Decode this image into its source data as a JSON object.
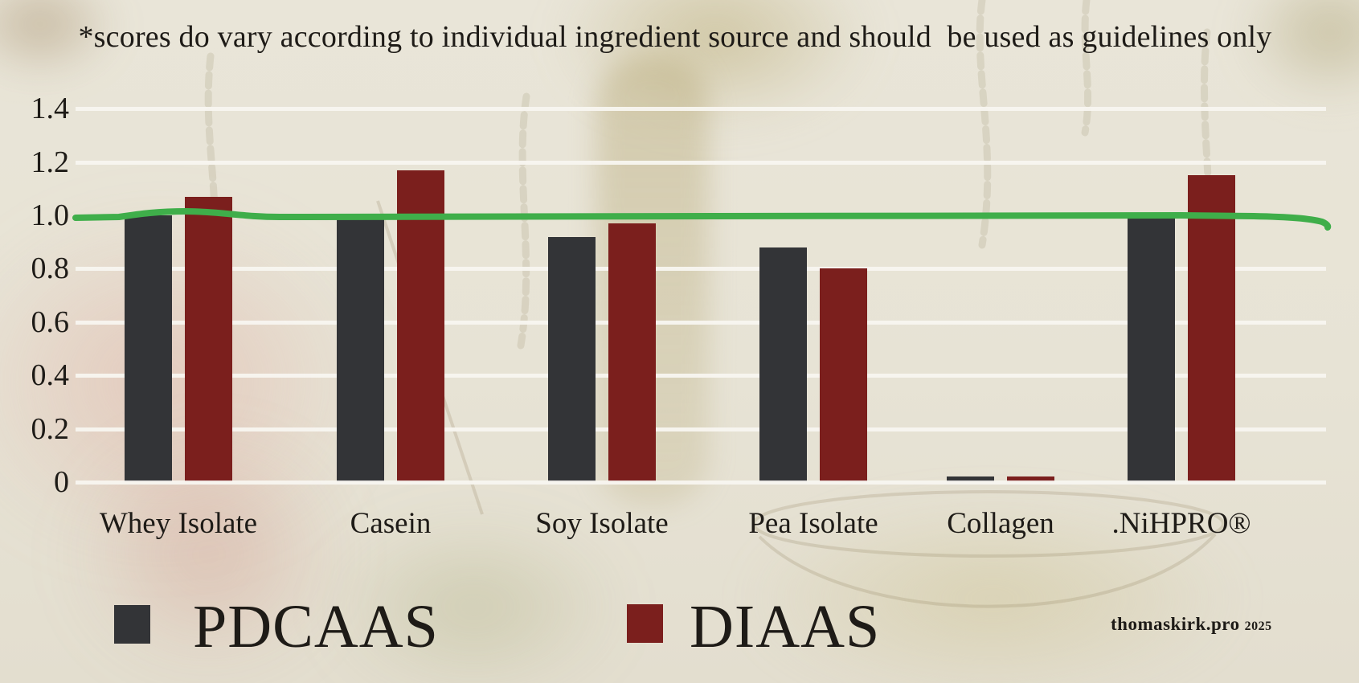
{
  "title": "*scores do vary according to individual ingredient source and should  be used as guidelines only",
  "legend": [
    {
      "label": "PDCAAS",
      "color": "#333437"
    },
    {
      "label": "DIAAS",
      "color": "#7b1f1d"
    }
  ],
  "watermark": {
    "site": "thomaskirk.pro",
    "year": "2025"
  },
  "chart_data": {
    "type": "bar",
    "categories": [
      "Whey Isolate",
      "Casein",
      "Soy Isolate",
      "Pea Isolate",
      "Collagen",
      ".NiHPRO®"
    ],
    "series": [
      {
        "name": "PDCAAS",
        "color": "#333437",
        "values": [
          1.0,
          1.0,
          0.92,
          0.88,
          0.02,
          1.0
        ]
      },
      {
        "name": "DIAAS",
        "color": "#7b1f1d",
        "values": [
          1.07,
          1.17,
          0.97,
          0.8,
          0.02,
          1.15
        ]
      }
    ],
    "yticks": [
      {
        "value": 0,
        "label": "0"
      },
      {
        "value": 0.2,
        "label": "0.2"
      },
      {
        "value": 0.4,
        "label": "0.4"
      },
      {
        "value": 0.6,
        "label": "0.6"
      },
      {
        "value": 0.8,
        "label": "0.8"
      },
      {
        "value": 1.0,
        "label": "1.0"
      },
      {
        "value": 1.2,
        "label": "1.2"
      },
      {
        "value": 1.4,
        "label": "1.4"
      }
    ],
    "ylim": [
      0,
      1.4
    ],
    "reference_line": {
      "value": 1.0,
      "color": "#3fae4a"
    },
    "grid": true,
    "legend_position": "bottom",
    "xlabel": "",
    "ylabel": ""
  }
}
